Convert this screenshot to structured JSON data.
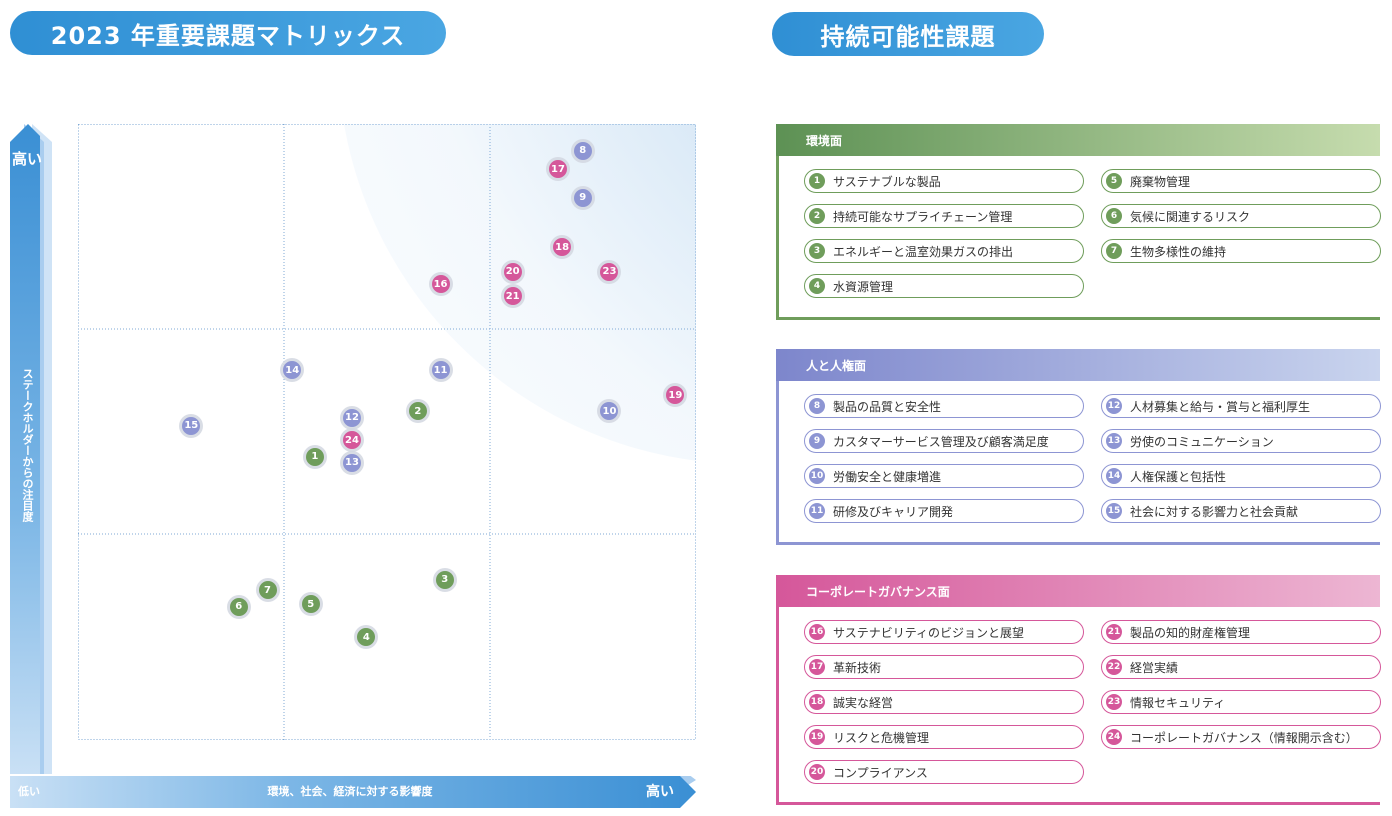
{
  "matrix": {
    "title": "2023 年重要課題マトリックス",
    "y_high": "高い",
    "y_axis_label": "ステークホルダーからの注目度",
    "x_low": "低い",
    "x_axis_label": "環境、社会、経済に対する影響度",
    "x_high": "高い",
    "colors": {
      "environment": "#6f9d5b",
      "human": "#8d95d3",
      "governance": "#d5579a",
      "axis": "#3a8fd4"
    },
    "points": [
      {
        "id": "1",
        "cat": "environment",
        "x": 1.15,
        "y": 1.38
      },
      {
        "id": "2",
        "cat": "environment",
        "x": 1.65,
        "y": 1.6
      },
      {
        "id": "3",
        "cat": "environment",
        "x": 1.78,
        "y": 0.78
      },
      {
        "id": "4",
        "cat": "environment",
        "x": 1.4,
        "y": 0.5
      },
      {
        "id": "5",
        "cat": "environment",
        "x": 1.13,
        "y": 0.66
      },
      {
        "id": "6",
        "cat": "environment",
        "x": 0.78,
        "y": 0.65
      },
      {
        "id": "7",
        "cat": "environment",
        "x": 0.92,
        "y": 0.73
      },
      {
        "id": "8",
        "cat": "human",
        "x": 2.45,
        "y": 2.87
      },
      {
        "id": "9",
        "cat": "human",
        "x": 2.45,
        "y": 2.64
      },
      {
        "id": "10",
        "cat": "human",
        "x": 2.58,
        "y": 1.6
      },
      {
        "id": "11",
        "cat": "human",
        "x": 1.76,
        "y": 1.8
      },
      {
        "id": "12",
        "cat": "human",
        "x": 1.33,
        "y": 1.57
      },
      {
        "id": "13",
        "cat": "human",
        "x": 1.33,
        "y": 1.35
      },
      {
        "id": "14",
        "cat": "human",
        "x": 1.04,
        "y": 1.8
      },
      {
        "id": "15",
        "cat": "human",
        "x": 0.55,
        "y": 1.53
      },
      {
        "id": "16",
        "cat": "governance",
        "x": 1.76,
        "y": 2.22
      },
      {
        "id": "17",
        "cat": "governance",
        "x": 2.33,
        "y": 2.78
      },
      {
        "id": "18",
        "cat": "governance",
        "x": 2.35,
        "y": 2.4
      },
      {
        "id": "19",
        "cat": "governance",
        "x": 2.9,
        "y": 1.68
      },
      {
        "id": "20",
        "cat": "governance",
        "x": 2.11,
        "y": 2.28
      },
      {
        "id": "21",
        "cat": "governance",
        "x": 2.11,
        "y": 2.16
      },
      {
        "id": "23",
        "cat": "governance",
        "x": 2.58,
        "y": 2.28
      },
      {
        "id": "24",
        "cat": "governance",
        "x": 1.33,
        "y": 1.46
      }
    ]
  },
  "sustainability": {
    "title": "持続可能性課題",
    "categories": [
      {
        "key": "environment",
        "label": "環境面",
        "color": "#6f9d5b",
        "gradient": [
          "#5d9154",
          "#c6dcae"
        ],
        "left": [
          {
            "num": "1",
            "text": "サステナブルな製品"
          },
          {
            "num": "2",
            "text": "持続可能なサプライチェーン管理"
          },
          {
            "num": "3",
            "text": "エネルギーと温室効果ガスの排出"
          },
          {
            "num": "4",
            "text": "水資源管理"
          }
        ],
        "right": [
          {
            "num": "5",
            "text": "廃棄物管理"
          },
          {
            "num": "6",
            "text": "気候に関連するリスク"
          },
          {
            "num": "7",
            "text": "生物多様性の維持"
          }
        ]
      },
      {
        "key": "human",
        "label": "人と人権面",
        "color": "#8d95d3",
        "gradient": [
          "#7d86cc",
          "#c9d4ee"
        ],
        "left": [
          {
            "num": "8",
            "text": "製品の品質と安全性"
          },
          {
            "num": "9",
            "text": "カスタマーサービス管理及び顧客満足度"
          },
          {
            "num": "10",
            "text": "労働安全と健康増進"
          },
          {
            "num": "11",
            "text": "研修及びキャリア開発"
          }
        ],
        "right": [
          {
            "num": "12",
            "text": "人材募集と給与・賞与と福利厚生"
          },
          {
            "num": "13",
            "text": "労使のコミュニケーション"
          },
          {
            "num": "14",
            "text": "人権保護と包括性"
          },
          {
            "num": "15",
            "text": "社会に対する影響力と社会貢献"
          }
        ]
      },
      {
        "key": "governance",
        "label": "コーポレートガバナンス面",
        "color": "#d5579a",
        "gradient": [
          "#d5579a",
          "#edb6d3"
        ],
        "left": [
          {
            "num": "16",
            "text": "サステナビリティのビジョンと展望"
          },
          {
            "num": "17",
            "text": "革新技術"
          },
          {
            "num": "18",
            "text": "誠実な経営"
          },
          {
            "num": "19",
            "text": "リスクと危機管理"
          },
          {
            "num": "20",
            "text": "コンプライアンス"
          }
        ],
        "right": [
          {
            "num": "21",
            "text": "製品の知的財産権管理"
          },
          {
            "num": "22",
            "text": "経営実績"
          },
          {
            "num": "23",
            "text": "情報セキュリティ"
          },
          {
            "num": "24",
            "text": "コーポレートガバナンス（情報開示含む）"
          }
        ]
      }
    ]
  }
}
